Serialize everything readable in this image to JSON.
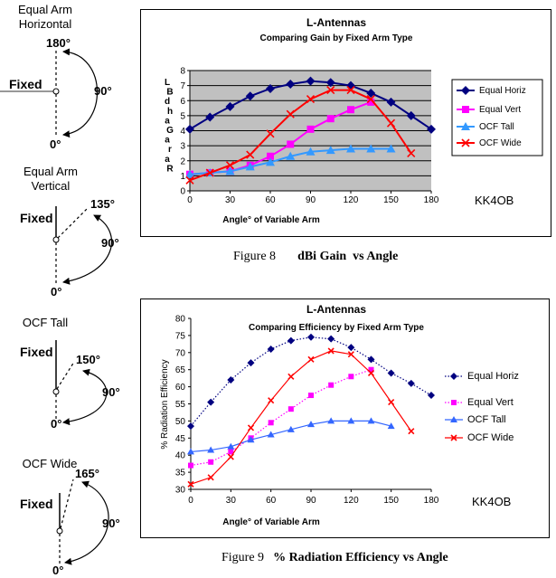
{
  "diagrams": [
    {
      "title_lines": [
        "Equal Arm",
        "Horizontal"
      ],
      "fixed_label": "Fixed",
      "variable_angle": "180°",
      "right_angle": "90°",
      "zero_angle": "0°"
    },
    {
      "title_lines": [
        "Equal Arm",
        "Vertical"
      ],
      "fixed_label": "Fixed",
      "variable_angle": "135°",
      "right_angle": "90°",
      "zero_angle": "0°"
    },
    {
      "title_lines": [
        "OCF Tall"
      ],
      "fixed_label": "Fixed",
      "variable_angle": "150°",
      "right_angle": "90°",
      "zero_angle": "0°"
    },
    {
      "title_lines": [
        "OCF Wide"
      ],
      "fixed_label": "Fixed",
      "variable_angle": "165°",
      "right_angle": "90°",
      "zero_angle": "0°"
    }
  ],
  "figures": [
    {
      "number": "Figure 8",
      "caption": "dBi Gain  vs Angle"
    },
    {
      "number": "Figure 9",
      "caption": "% Radiation Efficiency vs Angle"
    }
  ],
  "chart_data": [
    {
      "type": "line",
      "title": "L-Antennas",
      "subtitle": "Comparing Gain by Fixed Arm Type",
      "xlabel": "Angle° of Variable Arm",
      "ylabel_glyphs": [
        "L",
        "B",
        "d",
        "h",
        "a",
        "G",
        "a",
        "r",
        "a",
        "R"
      ],
      "xlim": [
        0,
        180
      ],
      "ylim": [
        0,
        8
      ],
      "xticks": [
        0,
        30,
        60,
        90,
        120,
        150,
        180
      ],
      "yticks": [
        0,
        1,
        2,
        3,
        4,
        5,
        6,
        7,
        8
      ],
      "grid": true,
      "plot_background": "#c0c0c0",
      "legend": "right",
      "annotation": "KK4OB",
      "series": [
        {
          "name": "Equal Horiz",
          "color": "#000080",
          "marker": "diamond",
          "line_style": "solid",
          "x": [
            0,
            15,
            30,
            45,
            60,
            75,
            90,
            105,
            120,
            135,
            150,
            165,
            180
          ],
          "values": [
            4.1,
            4.9,
            5.6,
            6.3,
            6.8,
            7.1,
            7.3,
            7.2,
            7.0,
            6.5,
            5.9,
            5.0,
            4.1
          ]
        },
        {
          "name": "Equal Vert",
          "color": "#ff00ff",
          "marker": "square",
          "line_style": "solid",
          "x": [
            0,
            15,
            30,
            45,
            60,
            75,
            90,
            105,
            120,
            135
          ],
          "values": [
            1.1,
            1.2,
            1.3,
            1.7,
            2.3,
            3.1,
            4.1,
            4.8,
            5.4,
            5.9
          ]
        },
        {
          "name": "OCF Tall",
          "color": "#3399ff",
          "marker": "triangle",
          "line_style": "solid",
          "x": [
            0,
            15,
            30,
            45,
            60,
            75,
            90,
            105,
            120,
            135,
            150
          ],
          "values": [
            1.1,
            1.2,
            1.3,
            1.6,
            1.9,
            2.3,
            2.6,
            2.7,
            2.8,
            2.8,
            2.8
          ]
        },
        {
          "name": "OCF Wide",
          "color": "#ff0000",
          "marker": "x",
          "line_style": "solid",
          "x": [
            0,
            15,
            30,
            45,
            60,
            75,
            90,
            105,
            120,
            135,
            150,
            165
          ],
          "values": [
            0.7,
            1.2,
            1.7,
            2.4,
            3.8,
            5.1,
            6.1,
            6.7,
            6.7,
            6.1,
            4.5,
            2.5
          ]
        }
      ]
    },
    {
      "type": "line",
      "title": "L-Antennas",
      "subtitle": "Comparing Efficiency by Fixed Arm Type",
      "xlabel": "Angle° of Variable Arm",
      "ylabel": "% Radiation Efficiency",
      "xlim": [
        0,
        180
      ],
      "ylim": [
        30,
        80
      ],
      "xticks": [
        0,
        30,
        60,
        90,
        120,
        150,
        180
      ],
      "yticks": [
        30,
        35,
        40,
        45,
        50,
        55,
        60,
        65,
        70,
        75,
        80
      ],
      "grid": false,
      "legend": "right",
      "annotation": "KK4OB",
      "series": [
        {
          "name": "Equal Horiz",
          "color": "#000080",
          "marker": "diamond",
          "line_style": "dotted",
          "x": [
            0,
            15,
            30,
            45,
            60,
            75,
            90,
            105,
            120,
            135,
            150,
            165,
            180
          ],
          "values": [
            48.5,
            55.5,
            62,
            67,
            71,
            73.5,
            74.5,
            74,
            71.5,
            68,
            64,
            61,
            57.5
          ]
        },
        {
          "name": "Equal Vert",
          "color": "#ff00ff",
          "marker": "square",
          "line_style": "dotted",
          "x": [
            0,
            15,
            30,
            45,
            60,
            75,
            90,
            105,
            120,
            135
          ],
          "values": [
            37,
            38,
            41,
            45,
            49.5,
            53.5,
            57.5,
            60.5,
            63,
            65
          ]
        },
        {
          "name": "OCF Tall",
          "color": "#3366ff",
          "marker": "triangle",
          "line_style": "solid",
          "x": [
            0,
            15,
            30,
            45,
            60,
            75,
            90,
            105,
            120,
            135,
            150
          ],
          "values": [
            41,
            41.5,
            42.5,
            44.5,
            46,
            47.5,
            49,
            50,
            50,
            50,
            48.5
          ]
        },
        {
          "name": "OCF Wide",
          "color": "#ff0000",
          "marker": "x",
          "line_style": "solid",
          "x": [
            0,
            15,
            30,
            45,
            60,
            75,
            90,
            105,
            120,
            135,
            150,
            165
          ],
          "values": [
            31.5,
            33.5,
            39.5,
            48,
            56,
            63,
            68,
            70.5,
            69.5,
            64,
            55.5,
            47
          ]
        }
      ]
    }
  ]
}
